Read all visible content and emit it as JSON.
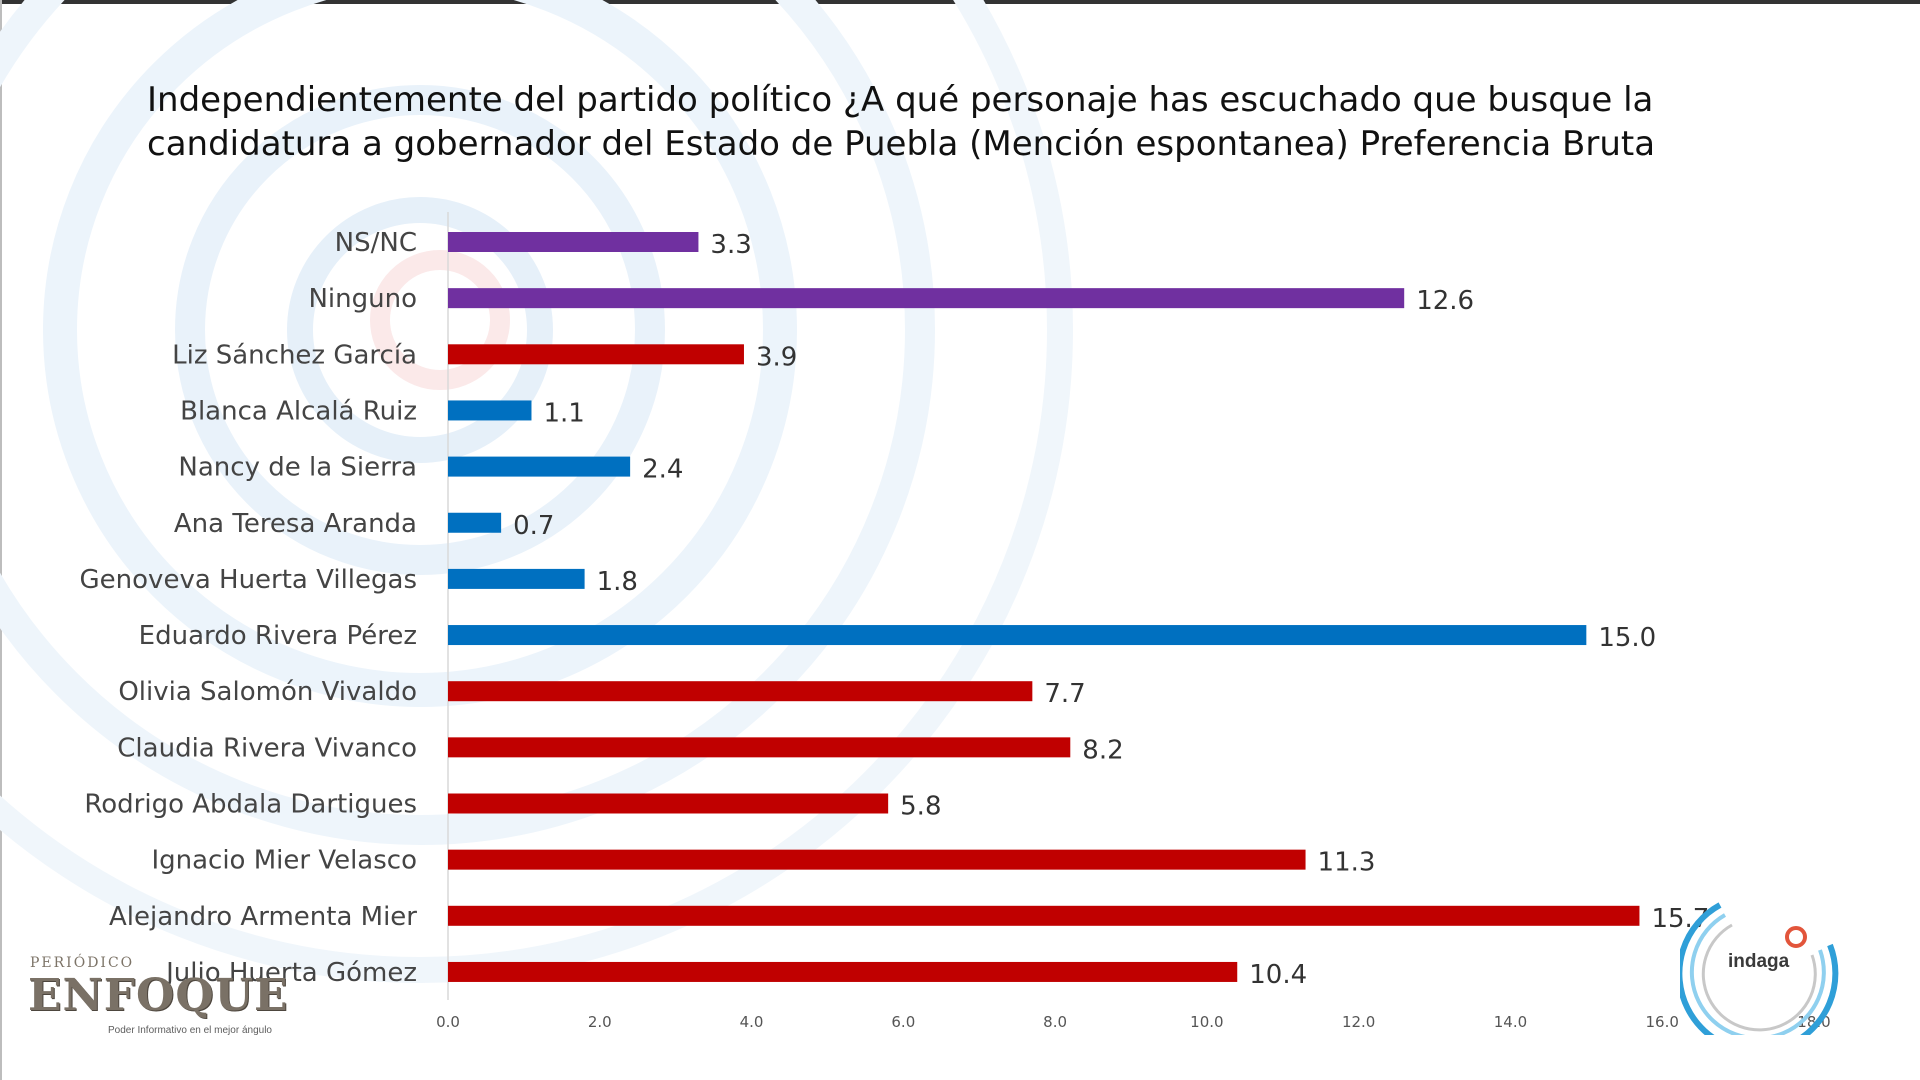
{
  "chart_data": {
    "type": "bar",
    "orientation": "horizontal",
    "title": "Independientemente del partido político ¿A qué personaje has escuchado que busque la candidatura a gobernador del Estado de Puebla (Mención espontanea) Preferencia Bruta",
    "xlabel": "",
    "ylabel": "",
    "xlim": [
      0,
      18
    ],
    "grid": false,
    "legend": "none",
    "ticks": [
      "0.0",
      "2.0",
      "4.0",
      "6.0",
      "8.0",
      "10.0",
      "12.0",
      "14.0",
      "16.0",
      "18.0"
    ],
    "categories": [
      "NS/NC",
      "Ninguno",
      "Liz Sánchez García",
      "Blanca Alcalá Ruiz",
      "Nancy de la Sierra",
      "Ana Teresa Aranda",
      "Genoveva Huerta Villegas",
      "Eduardo Rivera Pérez",
      "Olivia Salomón Vivaldo",
      "Claudia Rivera Vivanco",
      "Rodrigo Abdala Dartigues",
      "Ignacio Mier Velasco",
      "Alejandro Armenta Mier",
      "Julio Huerta Gómez"
    ],
    "values": [
      3.3,
      12.6,
      3.9,
      1.1,
      2.4,
      0.7,
      1.8,
      15.0,
      7.7,
      8.2,
      5.8,
      11.3,
      15.7,
      10.4
    ],
    "value_labels": [
      "3.3",
      "12.6",
      "3.9",
      "1.1",
      "2.4",
      "0.7",
      "1.8",
      "15.0",
      "7.7",
      "8.2",
      "5.8",
      "11.3",
      "15.7",
      "10.4"
    ],
    "bar_colors": [
      "#7030a0",
      "#7030a0",
      "#c00000",
      "#0070c0",
      "#0070c0",
      "#0070c0",
      "#0070c0",
      "#0070c0",
      "#c00000",
      "#c00000",
      "#c00000",
      "#c00000",
      "#c00000",
      "#c00000"
    ]
  },
  "logos": {
    "enfoque": {
      "small": "PERIÓDICO",
      "word": "ENFOQUE",
      "tagline": "Poder Informativo en el mejor ángulo"
    },
    "indaga": {
      "word": "indaga"
    }
  },
  "colors": {
    "purple": "#7030a0",
    "red": "#c00000",
    "blue": "#0070c0",
    "watermark": "#e7f1fa"
  }
}
